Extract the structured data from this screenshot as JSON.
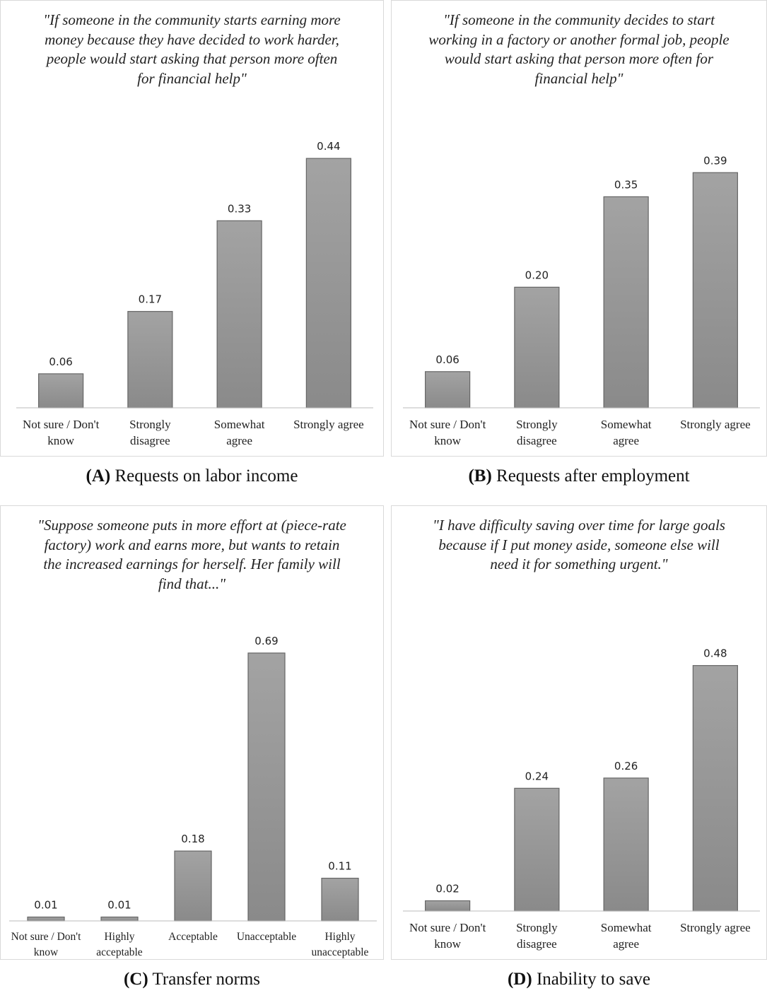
{
  "chart_data": [
    {
      "type": "bar",
      "title": "\"If someone in the community starts earning more money because they have decided to work harder, people would start asking that person more often for financial help\"",
      "categories": [
        "Not sure / Don't know",
        "Strongly disagree",
        "Somewhat agree",
        "Strongly agree"
      ],
      "values": [
        0.06,
        0.17,
        0.33,
        0.44
      ],
      "value_labels": [
        "0.06",
        "0.17",
        "0.33",
        "0.44"
      ],
      "ylim": [
        0,
        0.5
      ],
      "color": "#a3a3a3",
      "panel": "(A)",
      "caption": "Requests on labor income"
    },
    {
      "type": "bar",
      "title": "\"If someone in the community decides to start working in a factory or another formal job, people would start asking that person more often for financial help\"",
      "categories": [
        "Not sure / Don't know",
        "Strongly disagree",
        "Somewhat agree",
        "Strongly agree"
      ],
      "values": [
        0.06,
        0.2,
        0.35,
        0.39
      ],
      "value_labels": [
        "0.06",
        "0.20",
        "0.35",
        "0.39"
      ],
      "ylim": [
        0,
        0.47
      ],
      "color": "#a3a3a3",
      "panel": "(B)",
      "caption": "Requests after employment"
    },
    {
      "type": "bar",
      "title": "\"Suppose someone puts in more effort at (piece-rate factory) work and earns more, but wants to retain the increased earnings for herself. Her family will find that...\"",
      "categories": [
        "Not sure / Don't know",
        "Highly acceptable",
        "Acceptable",
        "Unacceptable",
        "Highly unacceptable"
      ],
      "values": [
        0.01,
        0.01,
        0.18,
        0.69,
        0.11
      ],
      "value_labels": [
        "0.01",
        "0.01",
        "0.18",
        "0.69",
        "0.11"
      ],
      "ylim": [
        0,
        0.75
      ],
      "color": "#a3a3a3",
      "panel": "(C)",
      "caption": "Transfer norms"
    },
    {
      "type": "bar",
      "title": "\"I have difficulty saving over time for large goals because if I put money aside, someone else will need it for something urgent.\"",
      "categories": [
        "Not sure / Don't know",
        "Strongly disagree",
        "Somewhat agree",
        "Strongly agree"
      ],
      "values": [
        0.02,
        0.24,
        0.26,
        0.48
      ],
      "value_labels": [
        "0.02",
        "0.24",
        "0.26",
        "0.48"
      ],
      "ylim": [
        0,
        0.55
      ],
      "color": "#a3a3a3",
      "panel": "(D)",
      "caption": "Inability to save"
    }
  ]
}
